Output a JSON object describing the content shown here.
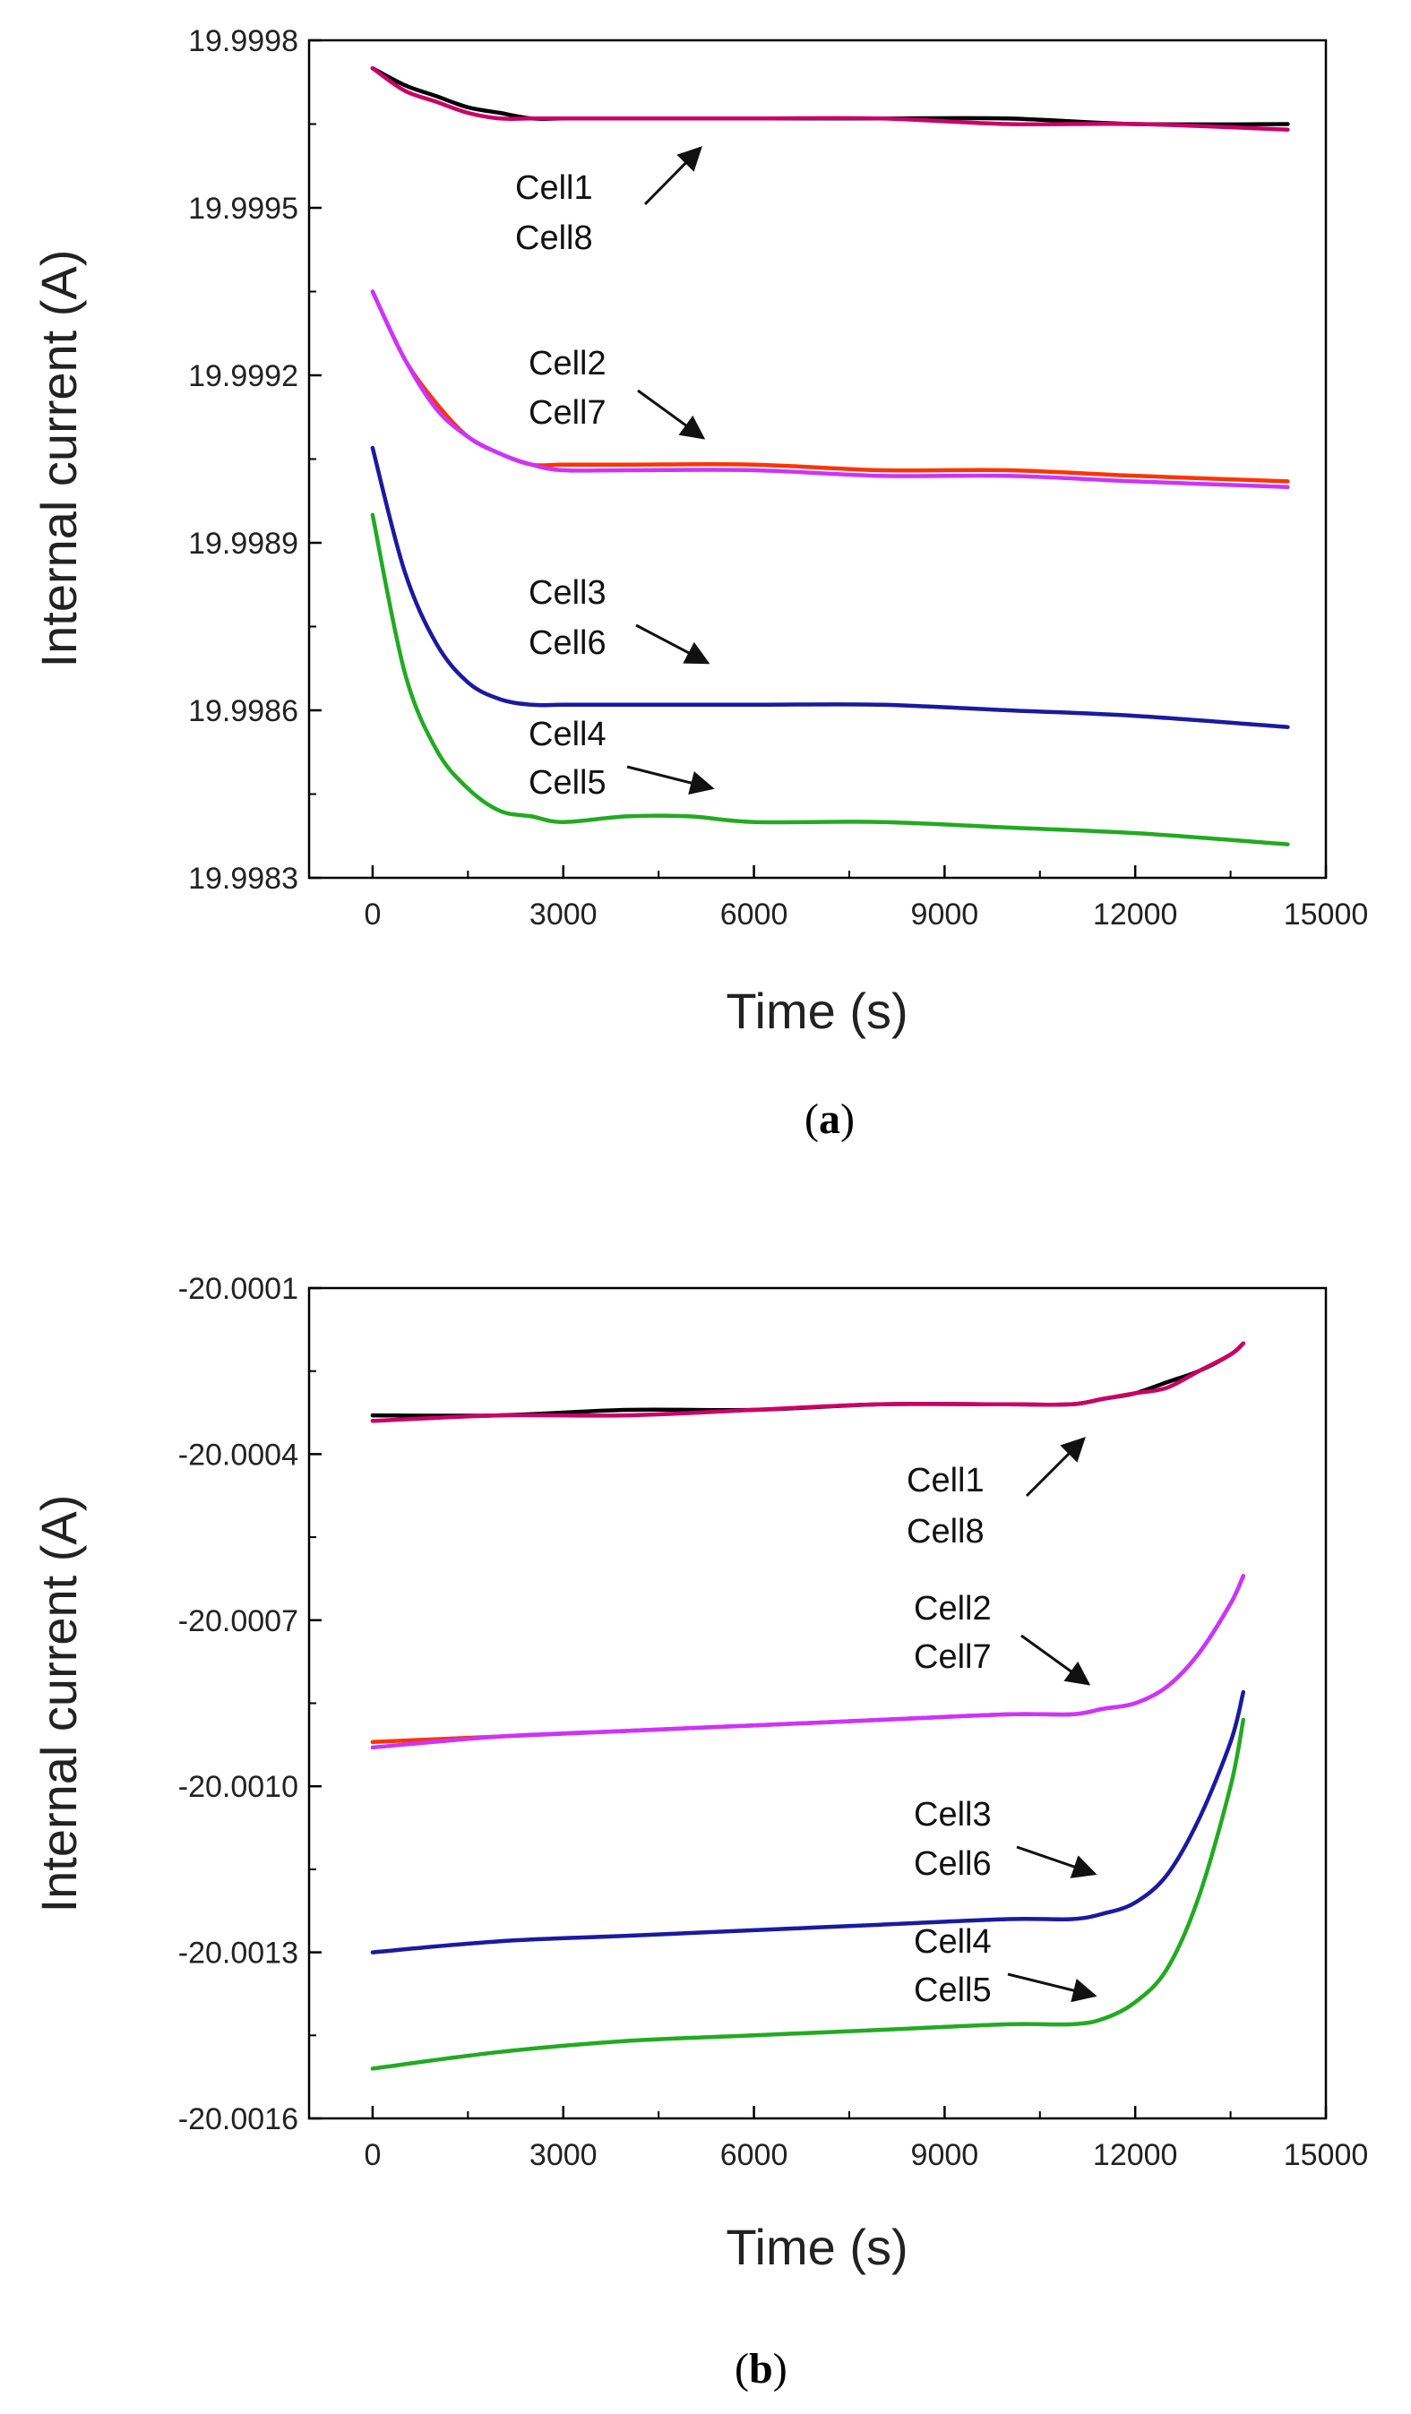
{
  "chart_data": [
    {
      "type": "line",
      "panel_label": "a",
      "xlabel": "Time (s)",
      "ylabel": "Internal current (A)",
      "xlim": [
        -1000,
        15000
      ],
      "ylim": [
        19.9983,
        19.9998
      ],
      "x_ticks": [
        "0",
        "3000",
        "6000",
        "9000",
        "12000",
        "15000"
      ],
      "y_ticks": [
        "19.9983",
        "19.9986",
        "19.9989",
        "19.9992",
        "19.9995",
        "19.9998"
      ],
      "grid": false,
      "series": [
        {
          "color": "#000000",
          "x": [
            0,
            500,
            1000,
            1500,
            2000,
            2500,
            3000,
            4000,
            6000,
            8000,
            10000,
            12000,
            14400
          ],
          "y": [
            19.99975,
            19.99972,
            19.9997,
            19.99968,
            19.99967,
            19.99966,
            19.99966,
            19.99966,
            19.99966,
            19.99966,
            19.99966,
            19.99965,
            19.99965
          ]
        },
        {
          "color": "#cc0066",
          "x": [
            0,
            500,
            1000,
            1500,
            2000,
            2500,
            3000,
            4000,
            6000,
            8000,
            10000,
            12000,
            14400
          ],
          "y": [
            19.99975,
            19.99971,
            19.99969,
            19.99967,
            19.99966,
            19.99966,
            19.99966,
            19.99966,
            19.99966,
            19.99966,
            19.99965,
            19.99965,
            19.99964
          ]
        },
        {
          "color": "#ff3300",
          "x": [
            0,
            500,
            1000,
            1500,
            2000,
            2500,
            3000,
            4000,
            6000,
            8000,
            10000,
            12000,
            14400
          ],
          "y": [
            19.99935,
            19.99923,
            19.99915,
            19.99909,
            19.99906,
            19.99904,
            19.99904,
            19.99904,
            19.99904,
            19.99903,
            19.99903,
            19.99902,
            19.99901
          ]
        },
        {
          "color": "#cc33ff",
          "x": [
            0,
            500,
            1000,
            1500,
            2000,
            2500,
            3000,
            4000,
            6000,
            8000,
            10000,
            12000,
            14400
          ],
          "y": [
            19.99935,
            19.99923,
            19.99914,
            19.99909,
            19.99906,
            19.99904,
            19.99903,
            19.99903,
            19.99903,
            19.99902,
            19.99902,
            19.99901,
            19.999
          ]
        },
        {
          "color": "#1a1aa0",
          "x": [
            0,
            500,
            1000,
            1500,
            2000,
            2500,
            3000,
            4000,
            6000,
            8000,
            10000,
            12000,
            14400
          ],
          "y": [
            19.99907,
            19.99885,
            19.99872,
            19.99865,
            19.99862,
            19.99861,
            19.99861,
            19.99861,
            19.99861,
            19.99861,
            19.9986,
            19.99859,
            19.99857
          ]
        },
        {
          "color": "#22aa22",
          "x": [
            0,
            500,
            1000,
            1500,
            2000,
            2500,
            3000,
            4000,
            5000,
            6000,
            8000,
            10000,
            12000,
            14400
          ],
          "y": [
            19.99895,
            19.99867,
            19.99853,
            19.99846,
            19.99842,
            19.99841,
            19.9984,
            19.99841,
            19.99841,
            19.9984,
            19.9984,
            19.99839,
            19.99838,
            19.99836
          ]
        }
      ],
      "annotations": [
        {
          "lines": [
            "Cell1",
            "Cell8"
          ]
        },
        {
          "lines": [
            "Cell2",
            "Cell7"
          ]
        },
        {
          "lines": [
            "Cell3",
            "Cell6"
          ]
        },
        {
          "lines": [
            "Cell4",
            "Cell5"
          ]
        }
      ]
    },
    {
      "type": "line",
      "panel_label": "b",
      "xlabel": "Time (s)",
      "ylabel": "Internal current (A)",
      "xlim": [
        -1000,
        15000
      ],
      "ylim": [
        -20.0016,
        -20.0001
      ],
      "x_ticks": [
        "0",
        "3000",
        "6000",
        "9000",
        "12000",
        "15000"
      ],
      "y_ticks": [
        "-20.0016",
        "-20.0013",
        "-20.0010",
        "-20.0007",
        "-20.0004",
        "-20.0001"
      ],
      "grid": false,
      "series": [
        {
          "color": "#000000",
          "x": [
            0,
            2000,
            4000,
            6000,
            8000,
            10000,
            11000,
            11500,
            12000,
            12500,
            13000,
            13500,
            13700
          ],
          "y": [
            -20.00033,
            -20.00033,
            -20.00032,
            -20.00032,
            -20.00031,
            -20.00031,
            -20.00031,
            -20.0003,
            -20.00029,
            -20.00027,
            -20.00025,
            -20.00022,
            -20.0002
          ]
        },
        {
          "color": "#cc0066",
          "x": [
            0,
            2000,
            4000,
            6000,
            8000,
            10000,
            11000,
            11500,
            12000,
            12500,
            13000,
            13500,
            13700
          ],
          "y": [
            -20.00034,
            -20.00033,
            -20.00033,
            -20.00032,
            -20.00031,
            -20.00031,
            -20.00031,
            -20.0003,
            -20.00029,
            -20.00028,
            -20.00025,
            -20.00022,
            -20.0002
          ]
        },
        {
          "color": "#ff3300",
          "x": [
            0,
            2000,
            4000,
            6000,
            8000,
            10000,
            11000,
            11500,
            12000,
            12500,
            13000,
            13500,
            13700
          ],
          "y": [
            -20.00092,
            -20.00091,
            -20.0009,
            -20.00089,
            -20.00088,
            -20.00087,
            -20.00087,
            -20.00086,
            -20.00085,
            -20.00082,
            -20.00076,
            -20.00067,
            -20.00062
          ]
        },
        {
          "color": "#cc33ff",
          "x": [
            0,
            2000,
            4000,
            6000,
            8000,
            10000,
            11000,
            11500,
            12000,
            12500,
            13000,
            13500,
            13700
          ],
          "y": [
            -20.00093,
            -20.00091,
            -20.0009,
            -20.00089,
            -20.00088,
            -20.00087,
            -20.00087,
            -20.00086,
            -20.00085,
            -20.00082,
            -20.00076,
            -20.00067,
            -20.00062
          ]
        },
        {
          "color": "#1a1aa0",
          "x": [
            0,
            2000,
            4000,
            6000,
            8000,
            10000,
            11000,
            11500,
            12000,
            12500,
            13000,
            13500,
            13700
          ],
          "y": [
            -20.0013,
            -20.00128,
            -20.00127,
            -20.00126,
            -20.00125,
            -20.00124,
            -20.00124,
            -20.00123,
            -20.00121,
            -20.00116,
            -20.00106,
            -20.00092,
            -20.00083
          ]
        },
        {
          "color": "#22aa22",
          "x": [
            0,
            2000,
            4000,
            6000,
            8000,
            10000,
            11000,
            11500,
            12000,
            12500,
            13000,
            13500,
            13700
          ],
          "y": [
            -20.00151,
            -20.00148,
            -20.00146,
            -20.00145,
            -20.00144,
            -20.00143,
            -20.00143,
            -20.00142,
            -20.00139,
            -20.00133,
            -20.0012,
            -20.001,
            -20.00088
          ]
        }
      ],
      "annotations": [
        {
          "lines": [
            "Cell1",
            "Cell8"
          ]
        },
        {
          "lines": [
            "Cell2",
            "Cell7"
          ]
        },
        {
          "lines": [
            "Cell3",
            "Cell6"
          ]
        },
        {
          "lines": [
            "Cell4",
            "Cell5"
          ]
        }
      ]
    }
  ]
}
